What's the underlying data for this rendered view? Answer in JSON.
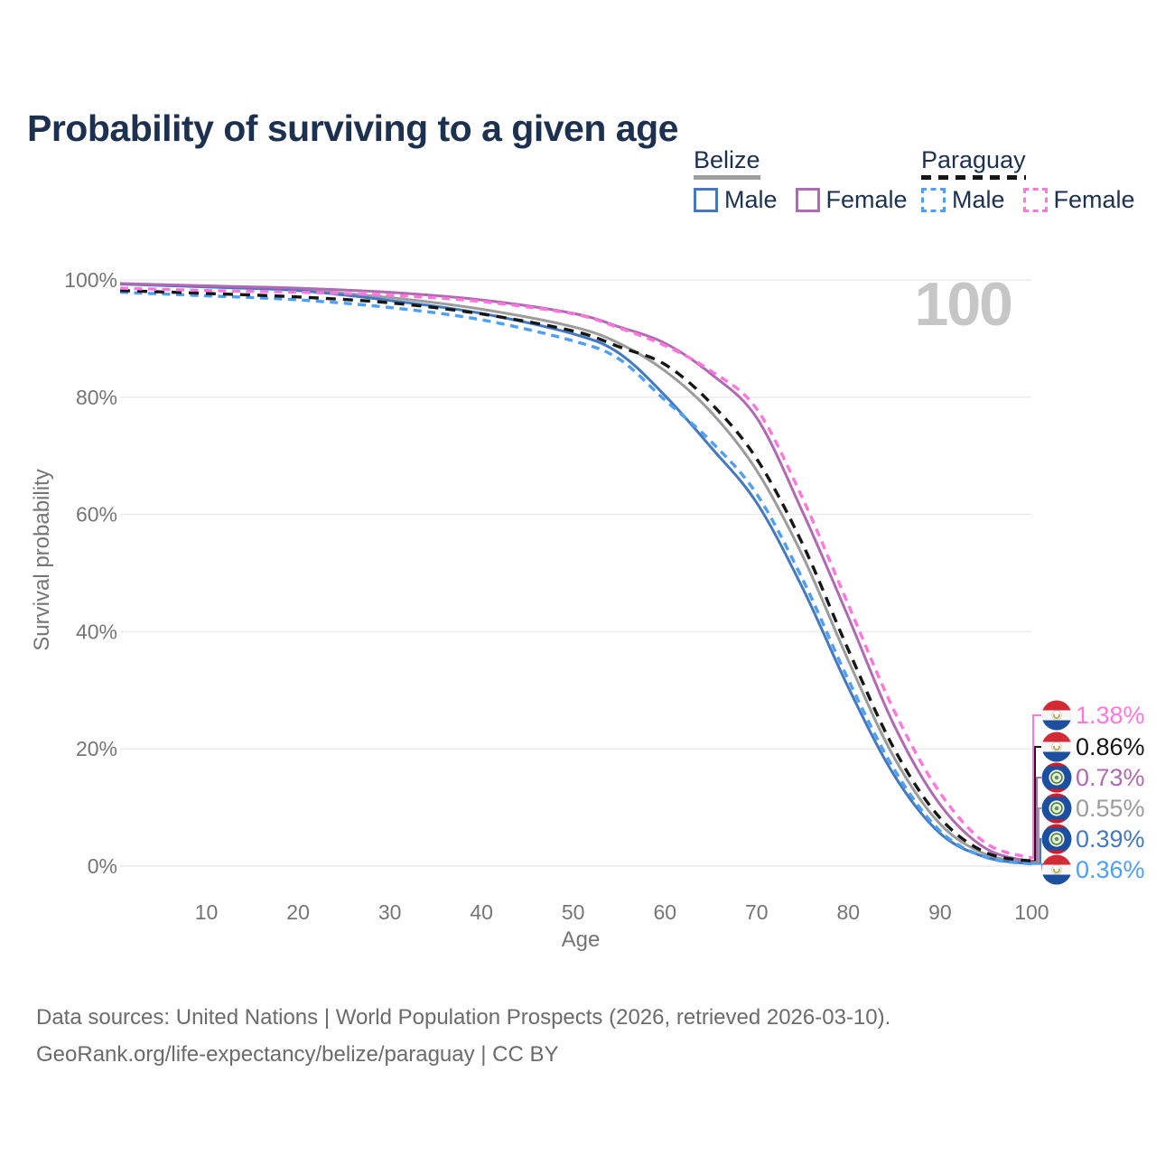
{
  "title": "Probability of surviving to a given age",
  "watermark": "100",
  "legend": {
    "groups": [
      {
        "name": "Belize",
        "line_style": "solid",
        "line_color": "#9e9e9e",
        "items": [
          {
            "label": "Male",
            "color": "#4478c1",
            "style": "solid"
          },
          {
            "label": "Female",
            "color": "#b06ab3",
            "style": "solid"
          }
        ]
      },
      {
        "name": "Paraguay",
        "line_style": "dashed",
        "line_color": "#161616",
        "items": [
          {
            "label": "Male",
            "color": "#4d9ff7",
            "style": "dashed"
          },
          {
            "label": "Female",
            "color": "#ff77dd",
            "style": "dashed"
          }
        ]
      }
    ]
  },
  "chart_data": {
    "type": "line",
    "title": "Probability of surviving to a given age",
    "xlabel": "Age",
    "ylabel": "Survival probability",
    "xlim": [
      0,
      100
    ],
    "ylim": [
      0,
      100
    ],
    "grid": "horizontal-only",
    "legend_position": "top-right",
    "x_ticks": [
      10,
      20,
      30,
      40,
      50,
      60,
      70,
      80,
      90,
      100
    ],
    "y_ticks": [
      0,
      20,
      40,
      60,
      80,
      100
    ],
    "y_tick_labels": [
      "0%",
      "20%",
      "40%",
      "60%",
      "80%",
      "100%"
    ],
    "ages": [
      0,
      10,
      20,
      30,
      40,
      50,
      55,
      60,
      65,
      70,
      75,
      80,
      85,
      90,
      95,
      100
    ],
    "series": [
      {
        "id": "belize-both",
        "country": "Belize",
        "sex": "Both sexes",
        "color": "#9c9c9c",
        "dash": "solid",
        "values": [
          99.3,
          98.9,
          98.3,
          97.0,
          95.0,
          92.0,
          89.2,
          84.5,
          77.5,
          67.5,
          53.0,
          35.1,
          18.5,
          7.2,
          2.0,
          0.55
        ],
        "end_value_label": "0.55%"
      },
      {
        "id": "belize-male",
        "country": "Belize",
        "sex": "Male",
        "color": "#4478c1",
        "dash": "solid",
        "values": [
          99.3,
          98.8,
          98.2,
          96.5,
          94.3,
          90.8,
          87.5,
          80.3,
          71.5,
          62.0,
          47.5,
          30.5,
          15.5,
          5.6,
          1.5,
          0.39
        ],
        "end_value_label": "0.39%"
      },
      {
        "id": "belize-female",
        "country": "Belize",
        "sex": "Female",
        "color": "#b06ab3",
        "dash": "solid",
        "values": [
          99.4,
          99.0,
          98.6,
          97.9,
          96.6,
          94.3,
          92.0,
          89.2,
          84.0,
          76.5,
          60.5,
          42.5,
          24.0,
          10.5,
          3.0,
          0.73
        ],
        "end_value_label": "0.73%"
      },
      {
        "id": "paraguay-male",
        "country": "Paraguay",
        "sex": "Male",
        "color": "#4d9ff7",
        "dash": "dashed",
        "values": [
          97.9,
          97.3,
          96.6,
          95.3,
          93.2,
          89.6,
          86.5,
          79.5,
          72.5,
          63.5,
          49.0,
          31.8,
          16.5,
          6.0,
          1.5,
          0.36
        ],
        "end_value_label": "0.36%"
      },
      {
        "id": "paraguay-both",
        "country": "Paraguay",
        "sex": "Both sexes",
        "color": "#161616",
        "dash": "dashed",
        "values": [
          98.2,
          97.7,
          97.1,
          96.1,
          94.2,
          91.3,
          88.6,
          85.6,
          79.0,
          69.5,
          55.0,
          36.9,
          20.0,
          8.2,
          2.3,
          0.86
        ],
        "end_value_label": "0.86%"
      },
      {
        "id": "paraguay-female",
        "country": "Paraguay",
        "sex": "Female",
        "color": "#ff77dd",
        "dash": "dashed",
        "values": [
          98.6,
          98.2,
          97.9,
          97.4,
          96.3,
          94.2,
          91.8,
          88.8,
          84.5,
          78.0,
          62.8,
          44.6,
          26.5,
          12.5,
          3.9,
          1.38
        ],
        "end_value_label": "1.38%"
      }
    ],
    "end_labels": [
      {
        "text": "1.38%",
        "color": "#ff77dd",
        "flag": "paraguay",
        "series": "paraguay-female"
      },
      {
        "text": "0.86%",
        "color": "#161616",
        "flag": "paraguay",
        "series": "paraguay-both"
      },
      {
        "text": "0.73%",
        "color": "#b06ab3",
        "flag": "belize",
        "series": "belize-female"
      },
      {
        "text": "0.55%",
        "color": "#9c9c9c",
        "flag": "belize",
        "series": "belize-both"
      },
      {
        "text": "0.39%",
        "color": "#4478c1",
        "flag": "belize",
        "series": "belize-male"
      },
      {
        "text": "0.36%",
        "color": "#4d9ff7",
        "flag": "paraguay",
        "series": "paraguay-male"
      }
    ]
  },
  "footer": {
    "line1": "Data sources: United Nations | World Population Prospects (2026, retrieved 2026-03-10).",
    "line2": "GeoRank.org/life-expectancy/belize/paraguay | CC BY"
  }
}
